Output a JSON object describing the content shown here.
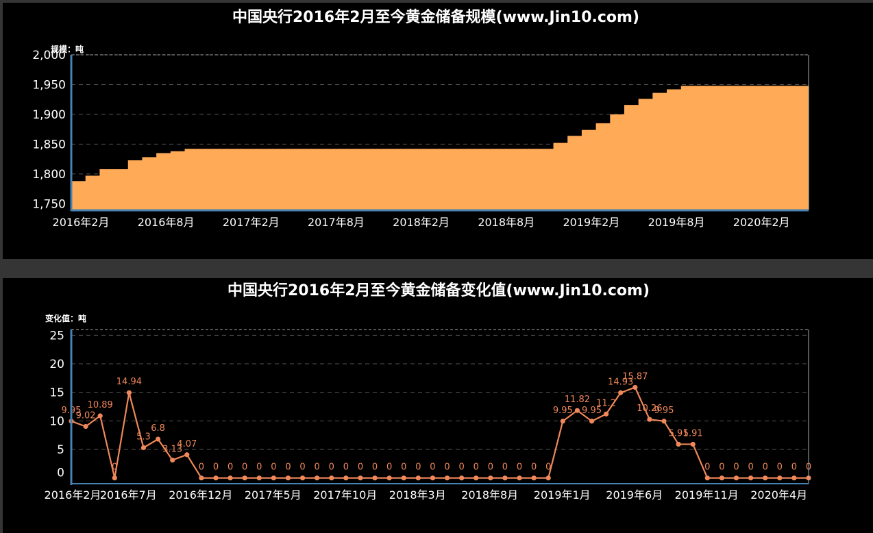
{
  "colors": {
    "area": "#ffaa57",
    "line": "#f0885a",
    "axis": "#4682b4",
    "grid": "#555555",
    "frame": "#aaaaaa"
  },
  "chart_data": [
    {
      "type": "area",
      "title": "中国央行2016年2月至今黄金储备规模(www.Jin10.com)",
      "ylabel": "规模：吨",
      "ylim": [
        1740,
        2000
      ],
      "yticks": [
        "1,750",
        "1,800",
        "1,850",
        "1,900",
        "1,950",
        "2,000"
      ],
      "ytick_values": [
        1750,
        1800,
        1850,
        1900,
        1950,
        2000
      ],
      "xticks": [
        "2016年2月",
        "2016年8月",
        "2017年2月",
        "2017年8月",
        "2018年2月",
        "2018年8月",
        "2019年2月",
        "2019年8月",
        "2020年2月"
      ],
      "xtick_index": [
        0,
        6,
        12,
        18,
        24,
        30,
        36,
        42,
        48
      ],
      "x": [
        "2016-02",
        "2016-03",
        "2016-04",
        "2016-05",
        "2016-06",
        "2016-07",
        "2016-08",
        "2016-09",
        "2016-10",
        "2016-11",
        "2016-12",
        "2017-01",
        "2017-02",
        "2017-03",
        "2017-04",
        "2017-05",
        "2017-06",
        "2017-07",
        "2017-08",
        "2017-09",
        "2017-10",
        "2017-11",
        "2017-12",
        "2018-01",
        "2018-02",
        "2018-03",
        "2018-04",
        "2018-05",
        "2018-06",
        "2018-07",
        "2018-08",
        "2018-09",
        "2018-10",
        "2018-11",
        "2018-12",
        "2019-01",
        "2019-02",
        "2019-03",
        "2019-04",
        "2019-05",
        "2019-06",
        "2019-07",
        "2019-08",
        "2019-09",
        "2019-10",
        "2019-11",
        "2019-12",
        "2020-01",
        "2020-02",
        "2020-03",
        "2020-04",
        "2020-05"
      ],
      "values": [
        1787.99,
        1797.01,
        1807.9,
        1807.9,
        1822.84,
        1828.14,
        1834.94,
        1838.07,
        1842.14,
        1842.14,
        1842.14,
        1842.14,
        1842.14,
        1842.14,
        1842.14,
        1842.14,
        1842.14,
        1842.14,
        1842.14,
        1842.14,
        1842.14,
        1842.14,
        1842.14,
        1842.14,
        1842.14,
        1842.14,
        1842.14,
        1842.14,
        1842.14,
        1842.14,
        1842.14,
        1842.14,
        1842.14,
        1842.14,
        1852.09,
        1863.91,
        1873.86,
        1885.06,
        1899.99,
        1915.86,
        1926.12,
        1936.07,
        1941.98,
        1947.89,
        1947.89,
        1947.89,
        1947.89,
        1947.89,
        1947.89,
        1947.89,
        1947.89,
        1947.89
      ]
    },
    {
      "type": "line",
      "title": "中国央行2016年2月至今黄金储备变化值(www.Jin10.com)",
      "ylabel": "变化值：吨",
      "ylim": [
        -1,
        26
      ],
      "yticks": [
        "0",
        "5",
        "10",
        "15",
        "20",
        "25"
      ],
      "ytick_values": [
        0,
        5,
        10,
        15,
        20,
        25
      ],
      "xticks": [
        "2016年2月",
        "2016年7月",
        "2016年12月",
        "2017年5月",
        "2017年10月",
        "2018年3月",
        "2018年8月",
        "2019年1月",
        "2019年6月",
        "2019年11月",
        "2020年4月"
      ],
      "xtick_index": [
        0,
        3,
        8,
        13,
        18,
        23,
        28,
        33,
        38,
        43,
        48
      ],
      "values": [
        9.95,
        9.02,
        10.89,
        0,
        14.94,
        5.3,
        6.8,
        3.13,
        4.07,
        0,
        0,
        0,
        0,
        0,
        0,
        0,
        0,
        0,
        0,
        0,
        0,
        0,
        0,
        0,
        0,
        0,
        0,
        0,
        0,
        0,
        0,
        0,
        0,
        0,
        9.95,
        11.82,
        9.95,
        11.2,
        14.93,
        15.87,
        10.26,
        9.95,
        5.91,
        5.91,
        0,
        0,
        0,
        0,
        0,
        0,
        0,
        0
      ],
      "labels": [
        "9.95",
        "9.02",
        "10.89",
        "0",
        "14.94",
        "5.3",
        "6.8",
        "3.13",
        "4.07",
        "0",
        "0",
        "0",
        "0",
        "0",
        "0",
        "0",
        "0",
        "0",
        "0",
        "0",
        "0",
        "0",
        "0",
        "0",
        "0",
        "0",
        "0",
        "0",
        "0",
        "0",
        "0",
        "0",
        "0",
        "0",
        "9.95",
        "11.82",
        "9.95",
        "11.2",
        "14.93",
        "15.87",
        "10.26",
        "9.95",
        "5.91",
        "5.91",
        "0",
        "0",
        "0",
        "0",
        "0",
        "0",
        "0",
        "0"
      ]
    }
  ]
}
